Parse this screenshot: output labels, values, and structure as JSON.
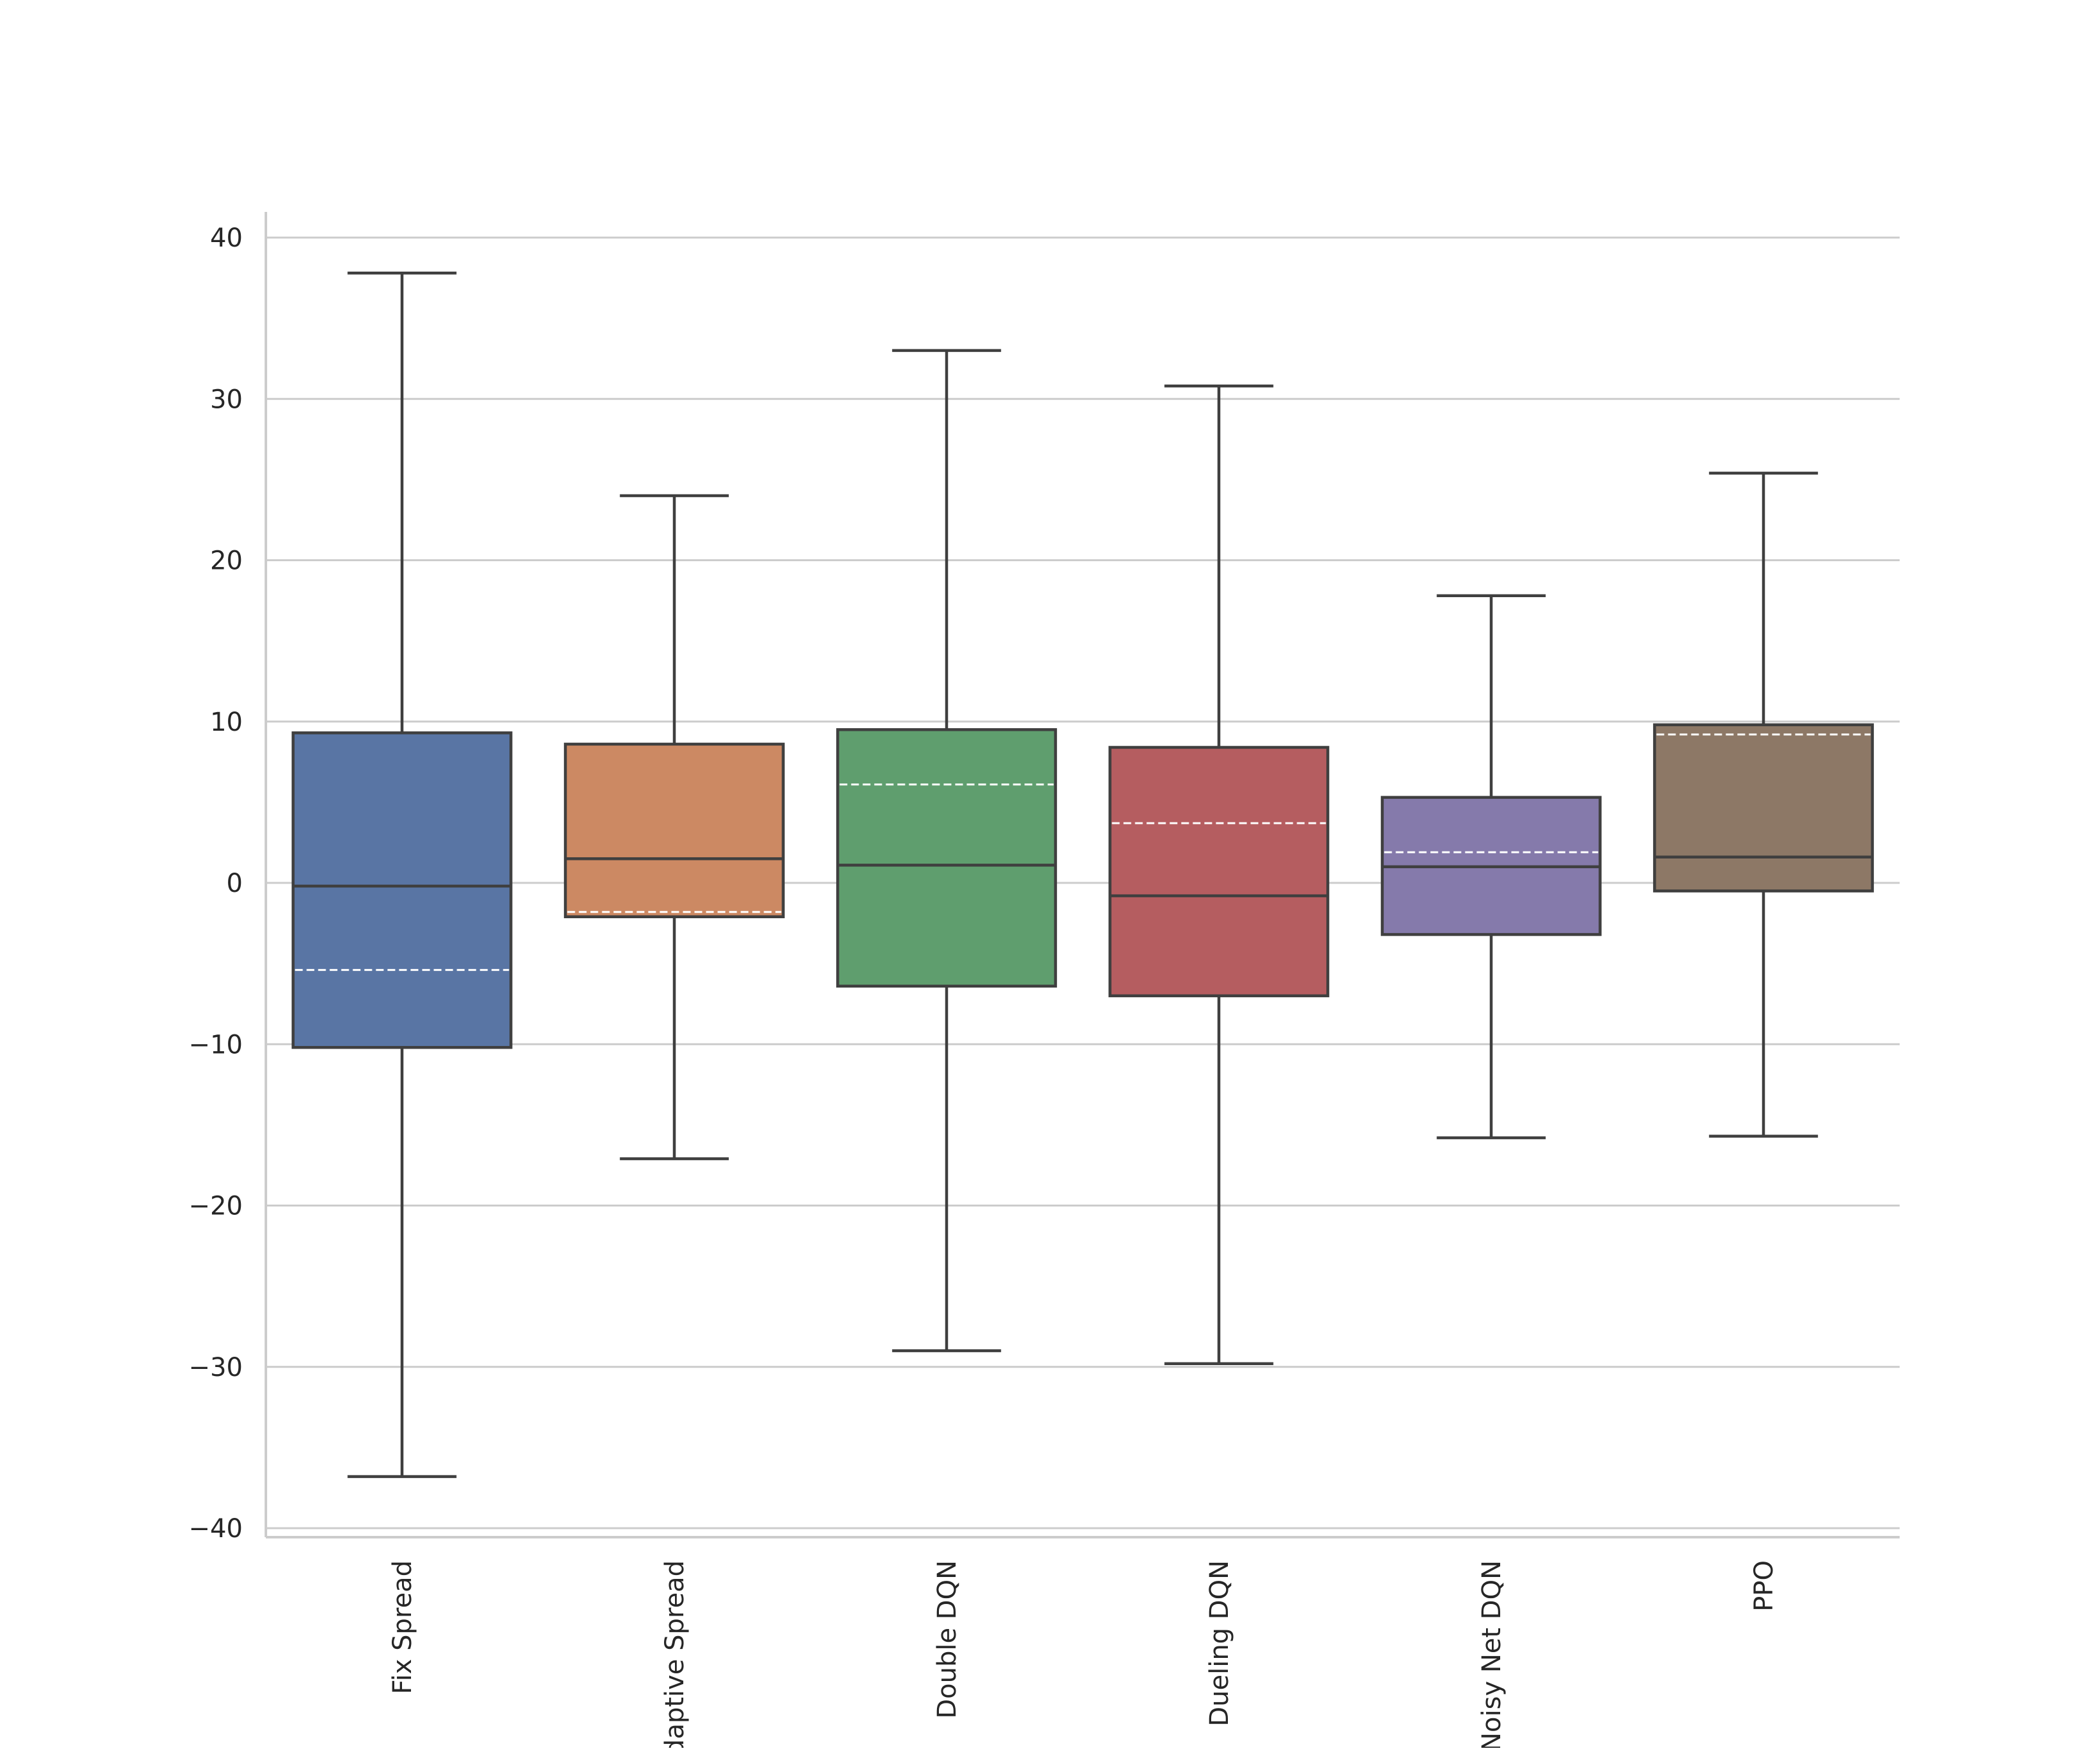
{
  "chart_data": {
    "type": "box",
    "title": "",
    "xlabel": "",
    "ylabel": "",
    "ylim": [
      -41,
      41.6
    ],
    "yticks": [
      40,
      30,
      20,
      10,
      0,
      -10,
      -20,
      -30,
      -40
    ],
    "ytick_labels": [
      "40",
      "30",
      "20",
      "10",
      "0",
      "−10",
      "−20",
      "−30",
      "−40"
    ],
    "grid": "horizontal",
    "legend": "none",
    "categories": [
      "Fix Spread",
      "Adaptive Spread",
      "Double DQN",
      "Dueling DQN",
      "Noisy Net DQN",
      "PPO"
    ],
    "boxes": [
      {
        "category": "Fix Spread",
        "whisker_low": -36.8,
        "q1": -10.2,
        "median": -0.2,
        "q3": 9.3,
        "whisker_high": 37.8,
        "mean": -5.4,
        "color": "#5975a4"
      },
      {
        "category": "Adaptive Spread",
        "whisker_low": -17.1,
        "q1": -2.1,
        "median": 1.5,
        "q3": 8.6,
        "whisker_high": 24.0,
        "mean": -1.8,
        "color": "#cc8963"
      },
      {
        "category": "Double DQN",
        "whisker_low": -29.0,
        "q1": -6.4,
        "median": 1.1,
        "q3": 9.5,
        "whisker_high": 33.0,
        "mean": 6.1,
        "color": "#5f9e6e"
      },
      {
        "category": "Dueling DQN",
        "whisker_low": -29.8,
        "q1": -7.0,
        "median": -0.8,
        "q3": 8.4,
        "whisker_high": 30.8,
        "mean": 3.7,
        "color": "#b55d60"
      },
      {
        "category": "Noisy Net DQN",
        "whisker_low": -15.8,
        "q1": -3.2,
        "median": 1.0,
        "q3": 5.3,
        "whisker_high": 17.8,
        "mean": 1.9,
        "color": "#857aab"
      },
      {
        "category": "PPO",
        "whisker_low": -15.7,
        "q1": -0.5,
        "median": 1.6,
        "q3": 9.8,
        "whisker_high": 25.4,
        "mean": 9.2,
        "color": "#8d7866"
      }
    ],
    "line_color": "#3f3f3f",
    "mean_line_color": "#ffffff",
    "grid_color": "#cccccc"
  }
}
